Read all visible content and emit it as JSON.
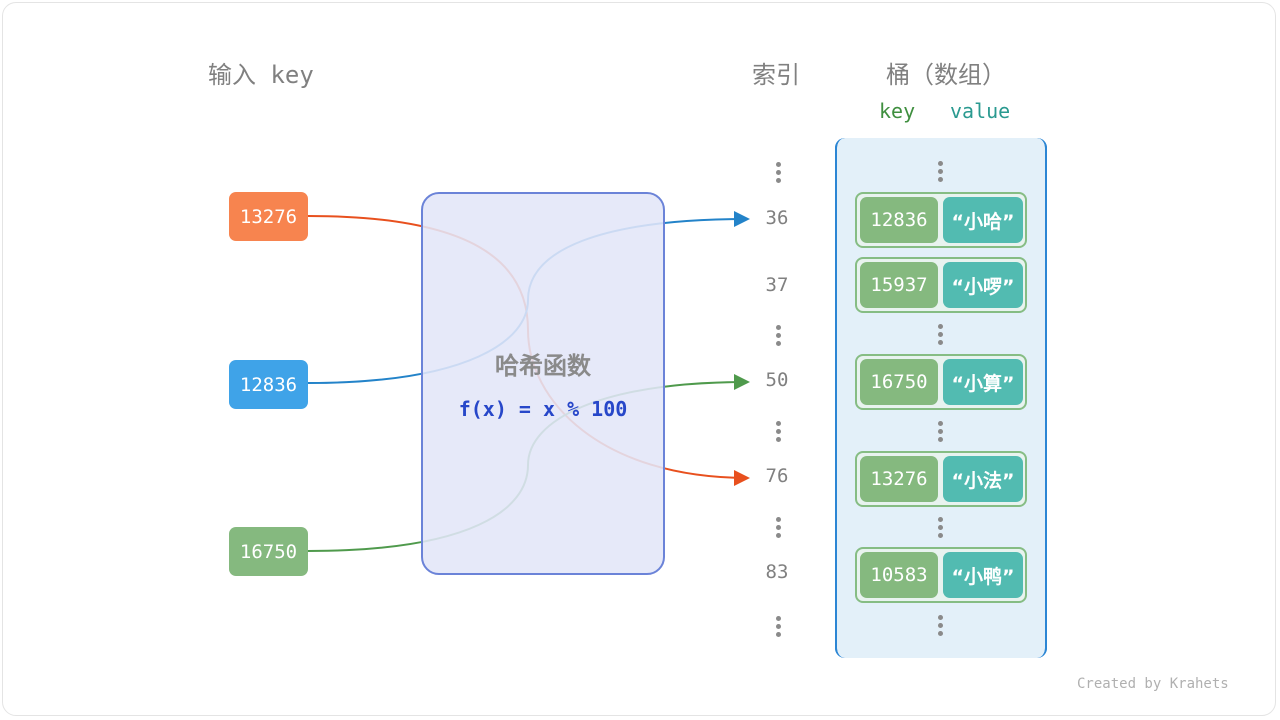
{
  "headers": {
    "input_key": "输入 key",
    "index": "索引",
    "bucket": "桶（数组）",
    "key": "key",
    "value": "value"
  },
  "inputs": [
    {
      "key": "13276",
      "color": "#f7844f",
      "target_index": "76"
    },
    {
      "key": "12836",
      "color": "#3fa3e8",
      "target_index": "36"
    },
    {
      "key": "16750",
      "color": "#85b97f",
      "target_index": "50"
    }
  ],
  "hash_function": {
    "title": "哈希函数",
    "formula": "f(x) = x % 100"
  },
  "indices": [
    "36",
    "37",
    "50",
    "76",
    "83"
  ],
  "buckets": [
    {
      "key": "12836",
      "value": "“小哈”"
    },
    {
      "key": "15937",
      "value": "“小啰”"
    },
    {
      "key": "16750",
      "value": "“小算”"
    },
    {
      "key": "13276",
      "value": "“小法”"
    },
    {
      "key": "10583",
      "value": "“小鸭”"
    }
  ],
  "colors": {
    "arrow_red": "#e8501e",
    "arrow_blue": "#2383c9",
    "arrow_green": "#4f9a4c",
    "key_header": "#3f8f3f",
    "value_header": "#2a9a90"
  },
  "credit": "Created by Krahets"
}
